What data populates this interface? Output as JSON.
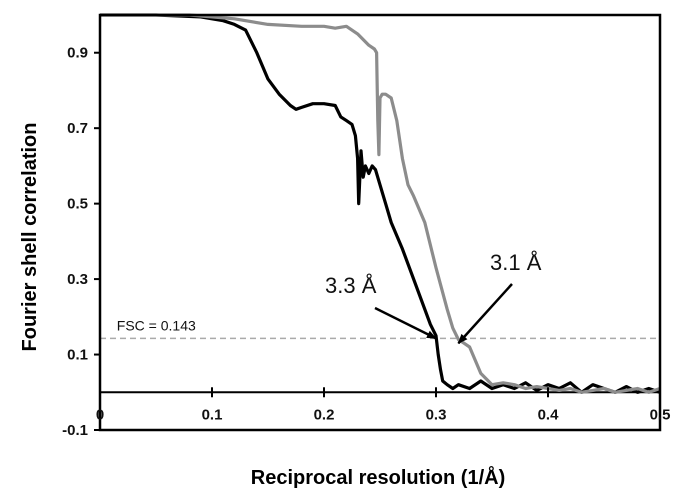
{
  "chart_data": {
    "type": "line",
    "title": "",
    "xlabel": "Reciprocal resolution (1/Å)",
    "ylabel": "Fourier shell correlation",
    "xlim": [
      0,
      0.5
    ],
    "ylim": [
      -0.1,
      1.0
    ],
    "x_tick_labels": [
      "0",
      "0.1",
      "0.2",
      "0.3",
      "0.4",
      "0.5"
    ],
    "x_ticks": [
      0,
      0.1,
      0.2,
      0.3,
      0.4,
      0.5
    ],
    "y_tick_labels": [
      "-0.1",
      "0.1",
      "0.3",
      "0.5",
      "0.7",
      "0.9"
    ],
    "y_ticks": [
      -0.1,
      0.1,
      0.3,
      0.5,
      0.7,
      0.9
    ],
    "grid": false,
    "legend": "none",
    "threshold": {
      "label": "FSC = 0.143",
      "value": 0.143,
      "color": "#aaaaaa"
    },
    "annotations": [
      {
        "text": "3.3 Å",
        "target": [
          0.3,
          0.143
        ]
      },
      {
        "text": "3.1 Å",
        "target": [
          0.32,
          0.13
        ]
      }
    ],
    "series": [
      {
        "color": "#000000",
        "x": [
          0,
          0.05,
          0.09,
          0.1,
          0.11,
          0.12,
          0.13,
          0.14,
          0.15,
          0.16,
          0.17,
          0.175,
          0.18,
          0.19,
          0.2,
          0.21,
          0.215,
          0.22,
          0.225,
          0.228,
          0.23,
          0.231,
          0.233,
          0.235,
          0.237,
          0.24,
          0.243,
          0.246,
          0.25,
          0.255,
          0.26,
          0.27,
          0.28,
          0.29,
          0.295,
          0.3,
          0.302,
          0.304,
          0.306,
          0.31,
          0.315,
          0.32,
          0.33,
          0.34,
          0.35,
          0.36,
          0.37,
          0.38,
          0.39,
          0.4,
          0.41,
          0.42,
          0.43,
          0.44,
          0.45,
          0.46,
          0.47,
          0.48,
          0.49,
          0.5
        ],
        "y": [
          1.0,
          1.0,
          0.995,
          0.99,
          0.985,
          0.975,
          0.96,
          0.9,
          0.83,
          0.79,
          0.76,
          0.75,
          0.755,
          0.765,
          0.765,
          0.76,
          0.73,
          0.72,
          0.71,
          0.68,
          0.62,
          0.5,
          0.64,
          0.57,
          0.6,
          0.58,
          0.6,
          0.59,
          0.55,
          0.5,
          0.45,
          0.38,
          0.3,
          0.22,
          0.18,
          0.15,
          0.1,
          0.06,
          0.03,
          0.02,
          0.01,
          0.02,
          0.01,
          0.03,
          0.01,
          0.02,
          0.01,
          0.025,
          0.005,
          0.02,
          0.01,
          0.025,
          0.0,
          0.02,
          0.01,
          0.0,
          0.015,
          0.0,
          0.01,
          0.0
        ]
      },
      {
        "color": "#8c8c8c",
        "x": [
          0,
          0.08,
          0.1,
          0.12,
          0.15,
          0.18,
          0.2,
          0.21,
          0.22,
          0.23,
          0.24,
          0.245,
          0.247,
          0.248,
          0.249,
          0.25,
          0.252,
          0.255,
          0.26,
          0.265,
          0.27,
          0.275,
          0.28,
          0.29,
          0.3,
          0.31,
          0.315,
          0.32,
          0.325,
          0.33,
          0.34,
          0.35,
          0.36,
          0.37,
          0.38,
          0.39,
          0.4,
          0.41,
          0.42,
          0.43,
          0.44,
          0.45,
          0.46,
          0.47,
          0.48,
          0.49,
          0.5
        ],
        "y": [
          1.0,
          1.0,
          0.995,
          0.99,
          0.975,
          0.97,
          0.97,
          0.965,
          0.97,
          0.95,
          0.92,
          0.91,
          0.9,
          0.72,
          0.63,
          0.78,
          0.79,
          0.79,
          0.78,
          0.72,
          0.62,
          0.55,
          0.52,
          0.45,
          0.33,
          0.22,
          0.17,
          0.14,
          0.13,
          0.12,
          0.05,
          0.02,
          0.025,
          0.02,
          0.01,
          0.015,
          0.01,
          0.005,
          0.01,
          0.0,
          0.005,
          0.01,
          0.0,
          0.005,
          0.01,
          0.0,
          0.01
        ]
      }
    ]
  }
}
